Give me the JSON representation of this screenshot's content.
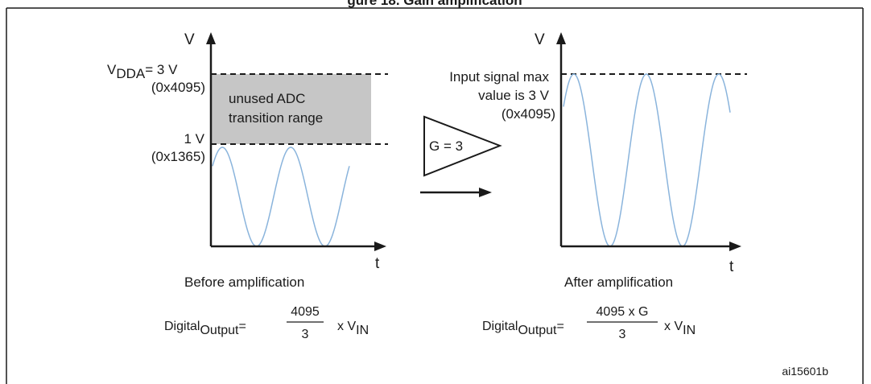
{
  "figure": {
    "title_partial": "gure 18. Gain amplification",
    "id_label": "ai15601b"
  },
  "before": {
    "y_axis": "V",
    "x_axis": "t",
    "vdda_main": "V",
    "vdda_sub": "DDA",
    "vdda_tail": "= 3 V",
    "vdda_hex": "(0x4095)",
    "level_1v": "1 V",
    "level_1v_hex": "(0x1365)",
    "unused_line1": "unused ADC",
    "unused_line2": "transition range",
    "caption": "Before amplification",
    "formula": {
      "lhs_main": "Digital",
      "lhs_sub": "Output",
      "eq": "=",
      "numerator": "4095",
      "denominator": "3",
      "rhs": "x V",
      "rhs_sub": "IN"
    }
  },
  "amplifier": {
    "label": "G = 3"
  },
  "after": {
    "y_axis": "V",
    "x_axis": "t",
    "max_line1": "Input signal max",
    "max_line2": "value is 3 V",
    "max_hex": "(0x4095)",
    "caption": "After amplification",
    "formula": {
      "lhs_main": "Digital",
      "lhs_sub": "Output",
      "eq": "=",
      "numerator": "4095 x G",
      "denominator": "3",
      "rhs": "x V",
      "rhs_sub": "IN"
    }
  },
  "colors": {
    "signal": "#8ab4dc",
    "unused_region": "#c6c6c6",
    "ink": "#1a1a1a"
  }
}
